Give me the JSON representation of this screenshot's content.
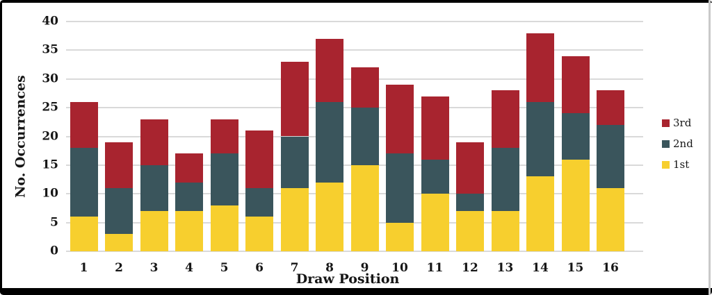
{
  "chart_data": {
    "type": "bar",
    "stacked": true,
    "title": "",
    "xlabel": "Draw Position",
    "ylabel": "No. Occurrences",
    "categories": [
      "1",
      "2",
      "3",
      "4",
      "5",
      "6",
      "7",
      "8",
      "9",
      "10",
      "11",
      "12",
      "13",
      "14",
      "15",
      "16"
    ],
    "series": [
      {
        "name": "1st",
        "color": "#F7CF2E",
        "values": [
          6,
          3,
          7,
          7,
          8,
          6,
          11,
          12,
          15,
          5,
          10,
          7,
          7,
          13,
          16,
          11
        ]
      },
      {
        "name": "2nd",
        "color": "#3A555C",
        "values": [
          12,
          8,
          8,
          5,
          9,
          5,
          9,
          14,
          10,
          12,
          6,
          3,
          11,
          13,
          8,
          11
        ]
      },
      {
        "name": "3rd",
        "color": "#A8242F",
        "values": [
          8,
          8,
          8,
          5,
          6,
          10,
          13,
          11,
          7,
          12,
          11,
          9,
          10,
          12,
          10,
          6
        ]
      }
    ],
    "totals": [
      26,
      19,
      23,
      17,
      23,
      21,
      33,
      37,
      32,
      29,
      27,
      19,
      28,
      38,
      34,
      28
    ],
    "ylim": [
      0,
      40
    ],
    "ytick_step": 5,
    "yticks": [
      0,
      5,
      10,
      15,
      20,
      25,
      30,
      35,
      40
    ],
    "grid": true,
    "gridline_color": "#D9D9D9",
    "legend_position": "right",
    "legend_order": [
      "3rd",
      "2nd",
      "1st"
    ],
    "text_color": "#161616"
  }
}
